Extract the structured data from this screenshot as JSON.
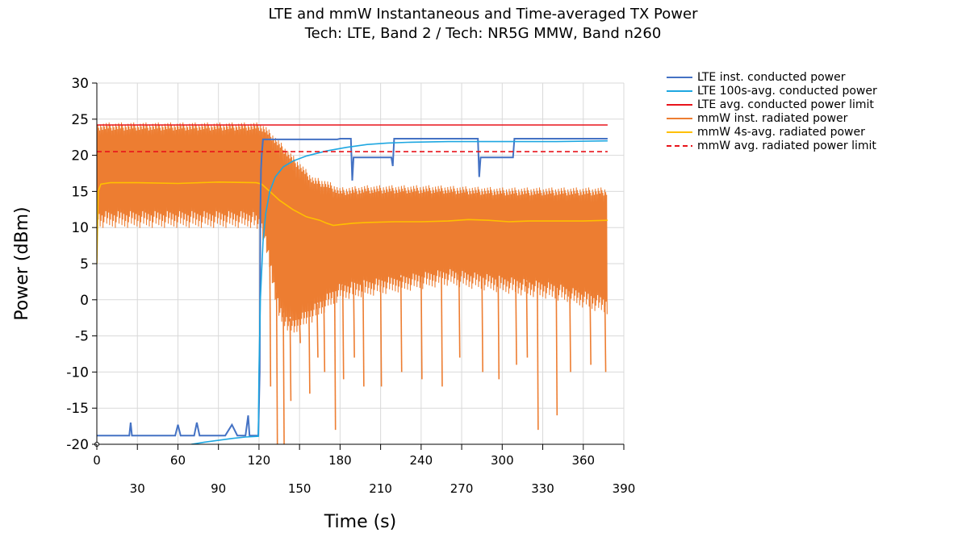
{
  "chart_data": {
    "type": "line",
    "title": "LTE and mmW Instantaneous and Time-averaged TX Power",
    "subtitle": "Tech: LTE, Band 2 / Tech: NR5G MMW, Band n260",
    "xlabel": "Time (s)",
    "ylabel": "Power (dBm)",
    "xlim": [
      0,
      390
    ],
    "ylim": [
      -20,
      30
    ],
    "x_ticks_row1": [
      0,
      60,
      120,
      180,
      240,
      300,
      360
    ],
    "x_ticks_row2": [
      30,
      90,
      150,
      210,
      270,
      330,
      390
    ],
    "y_ticks": [
      30,
      25,
      20,
      15,
      10,
      5,
      0,
      -5,
      -10,
      -15,
      -20
    ],
    "legend_position": "right",
    "grid": true,
    "series": [
      {
        "name": "LTE inst. conducted power",
        "color": "#4472C4",
        "style": "solid",
        "points": [
          [
            0,
            -18.8
          ],
          [
            24,
            -18.8
          ],
          [
            25,
            -17
          ],
          [
            26,
            -18.8
          ],
          [
            58,
            -18.8
          ],
          [
            60,
            -17.3
          ],
          [
            62,
            -18.8
          ],
          [
            72,
            -18.8
          ],
          [
            74,
            -17
          ],
          [
            76,
            -18.8
          ],
          [
            95,
            -18.8
          ],
          [
            100,
            -17.3
          ],
          [
            104,
            -18.8
          ],
          [
            110,
            -18.8
          ],
          [
            112,
            -16
          ],
          [
            113,
            -18.8
          ],
          [
            119.5,
            -18.8
          ],
          [
            120.5,
            -10
          ],
          [
            121,
            12
          ],
          [
            121.5,
            18
          ],
          [
            122,
            20
          ],
          [
            123,
            22.2
          ],
          [
            178,
            22.2
          ],
          [
            180,
            22.3
          ],
          [
            188,
            22.3
          ],
          [
            189,
            16.5
          ],
          [
            190,
            19.7
          ],
          [
            218,
            19.7
          ],
          [
            219,
            18.5
          ],
          [
            220,
            22.3
          ],
          [
            282,
            22.3
          ],
          [
            283,
            17
          ],
          [
            284,
            19.7
          ],
          [
            308,
            19.7
          ],
          [
            309,
            22.3
          ],
          [
            378,
            22.3
          ]
        ]
      },
      {
        "name": "LTE 100s-avg. conducted power",
        "color": "#1EA7E1",
        "style": "solid",
        "points": [
          [
            70,
            -20
          ],
          [
            80,
            -19.7
          ],
          [
            100,
            -19.2
          ],
          [
            110,
            -19
          ],
          [
            119.5,
            -18.9
          ],
          [
            120,
            -10
          ],
          [
            121,
            0
          ],
          [
            123,
            8
          ],
          [
            125,
            12
          ],
          [
            128,
            15
          ],
          [
            132,
            17
          ],
          [
            138,
            18.4
          ],
          [
            145,
            19.2
          ],
          [
            155,
            19.9
          ],
          [
            170,
            20.6
          ],
          [
            185,
            21.1
          ],
          [
            200,
            21.5
          ],
          [
            215,
            21.7
          ],
          [
            230,
            21.8
          ],
          [
            260,
            21.9
          ],
          [
            300,
            21.9
          ],
          [
            340,
            21.9
          ],
          [
            378,
            22
          ]
        ]
      },
      {
        "name": "LTE avg. conducted power limit",
        "color": "#E8141B",
        "style": "solid",
        "points": [
          [
            0,
            24.2
          ],
          [
            378,
            24.2
          ]
        ]
      },
      {
        "name": "mmW inst. radiated power",
        "color": "#ED7D31",
        "style": "band",
        "points": [
          [
            0,
            10
          ],
          [
            5,
            25
          ],
          [
            10,
            12
          ],
          [
            20,
            25
          ],
          [
            30,
            10
          ],
          [
            50,
            25
          ],
          [
            70,
            10
          ],
          [
            90,
            24.5
          ],
          [
            110,
            10
          ],
          [
            122,
            25
          ],
          [
            130,
            -8
          ],
          [
            140,
            25
          ],
          [
            150,
            -15
          ],
          [
            160,
            18
          ],
          [
            170,
            -18
          ],
          [
            180,
            17
          ],
          [
            200,
            -16
          ],
          [
            220,
            16
          ],
          [
            240,
            -16
          ],
          [
            260,
            16
          ],
          [
            280,
            -15
          ],
          [
            300,
            16
          ],
          [
            320,
            -15
          ],
          [
            340,
            16
          ],
          [
            360,
            -14
          ],
          [
            378,
            15
          ]
        ],
        "envelope_upper": [
          [
            0,
            24.5
          ],
          [
            120,
            24.5
          ],
          [
            125,
            24
          ],
          [
            135,
            22
          ],
          [
            145,
            20
          ],
          [
            150,
            19
          ],
          [
            160,
            17
          ],
          [
            170,
            16.5
          ],
          [
            180,
            15.5
          ],
          [
            200,
            15.8
          ],
          [
            250,
            15.8
          ],
          [
            300,
            15.5
          ],
          [
            340,
            15.5
          ],
          [
            378,
            15.5
          ]
        ],
        "envelope_lower": [
          [
            0,
            10
          ],
          [
            115,
            10
          ],
          [
            122,
            9
          ],
          [
            128,
            4
          ],
          [
            135,
            -3
          ],
          [
            145,
            -5
          ],
          [
            160,
            -3
          ],
          [
            180,
            0
          ],
          [
            220,
            1
          ],
          [
            260,
            2
          ],
          [
            300,
            1
          ],
          [
            340,
            0
          ],
          [
            378,
            -2
          ]
        ],
        "spikes_low": [
          [
            128,
            -12
          ],
          [
            133,
            -20
          ],
          [
            138,
            -20
          ],
          [
            143,
            -14
          ],
          [
            150,
            -6
          ],
          [
            157,
            -13
          ],
          [
            163,
            -8
          ],
          [
            168,
            -10
          ],
          [
            176,
            -18
          ],
          [
            182,
            -11
          ],
          [
            190,
            -8
          ],
          [
            197,
            -12
          ],
          [
            210,
            -12
          ],
          [
            225,
            -10
          ],
          [
            240,
            -11
          ],
          [
            255,
            -12
          ],
          [
            268,
            -8
          ],
          [
            285,
            -10
          ],
          [
            297,
            -11
          ],
          [
            310,
            -9
          ],
          [
            318,
            -8
          ],
          [
            326,
            -18
          ],
          [
            340,
            -16
          ],
          [
            350,
            -10
          ],
          [
            365,
            -9
          ],
          [
            376,
            -10
          ]
        ]
      },
      {
        "name": "mmW 4s-avg. radiated power",
        "color": "#FFC000",
        "style": "solid",
        "points": [
          [
            0,
            5
          ],
          [
            1,
            15
          ],
          [
            3,
            16
          ],
          [
            10,
            16.2
          ],
          [
            30,
            16.2
          ],
          [
            60,
            16.1
          ],
          [
            90,
            16.3
          ],
          [
            118,
            16.2
          ],
          [
            122,
            16
          ],
          [
            128,
            15
          ],
          [
            135,
            13.8
          ],
          [
            145,
            12.5
          ],
          [
            155,
            11.5
          ],
          [
            165,
            11
          ],
          [
            170,
            10.6
          ],
          [
            175,
            10.3
          ],
          [
            180,
            10.4
          ],
          [
            190,
            10.6
          ],
          [
            200,
            10.7
          ],
          [
            220,
            10.8
          ],
          [
            240,
            10.8
          ],
          [
            260,
            10.9
          ],
          [
            275,
            11.1
          ],
          [
            290,
            11
          ],
          [
            305,
            10.8
          ],
          [
            320,
            10.9
          ],
          [
            340,
            10.9
          ],
          [
            360,
            10.9
          ],
          [
            378,
            11
          ]
        ]
      },
      {
        "name": "mmW avg. radiated power limit",
        "color": "#E8141B",
        "style": "dashed",
        "points": [
          [
            0,
            20.5
          ],
          [
            378,
            20.5
          ]
        ]
      }
    ]
  }
}
